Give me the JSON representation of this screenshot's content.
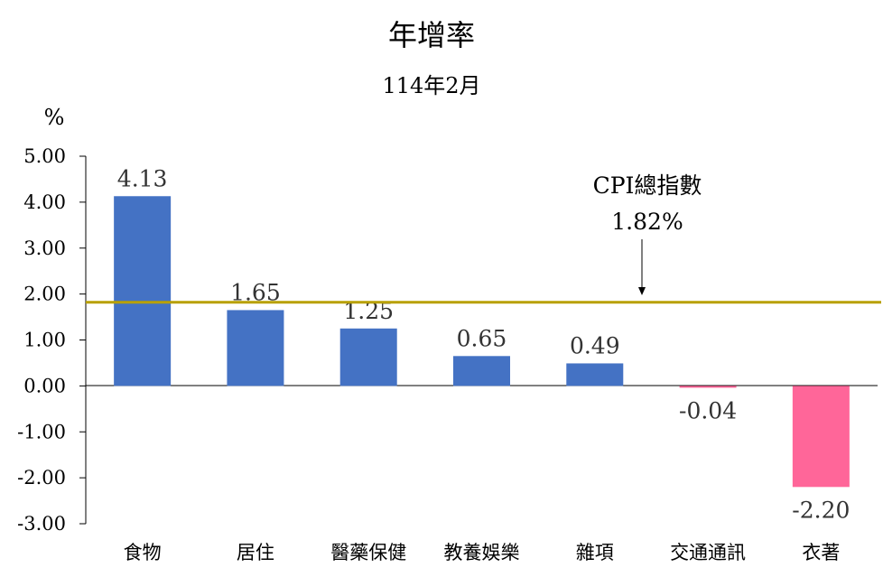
{
  "chart_data": {
    "type": "bar",
    "title": "年增率",
    "subtitle": "114年2月",
    "ylabel": "%",
    "ylim": [
      -3,
      5
    ],
    "yticks": [
      "5.00",
      "4.00",
      "3.00",
      "2.00",
      "1.00",
      "0.00",
      "-1.00",
      "-2.00",
      "-3.00"
    ],
    "categories": [
      "食物",
      "居住",
      "醫藥保健",
      "教養娛樂",
      "雜項",
      "交通通訊",
      "衣著"
    ],
    "values": [
      4.13,
      1.65,
      1.25,
      0.65,
      0.49,
      -0.04,
      -2.2
    ],
    "value_labels": [
      "4.13",
      "1.65",
      "1.25",
      "0.65",
      "0.49",
      "-0.04",
      "-2.20"
    ],
    "reference_line": {
      "value": 1.82,
      "label": "CPI總指數",
      "value_label": "1.82%"
    },
    "colors": {
      "positive": "#4472C4",
      "negative": "#FF6699",
      "reference": "#B8A000"
    },
    "grid": false
  }
}
